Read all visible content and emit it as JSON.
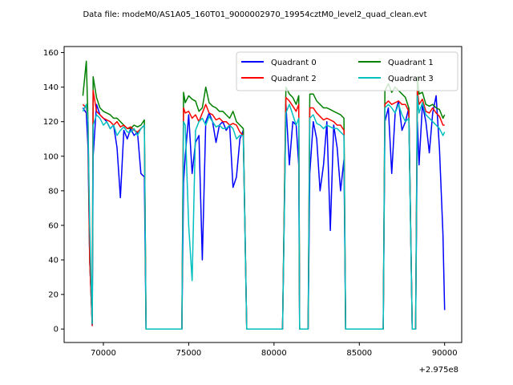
{
  "chart_data": {
    "type": "line",
    "title": "Data file: modeM0/AS1A05_160T01_9000002970_19954cztM0_level2_quad_clean.evt",
    "xlabel": "",
    "ylabel": "",
    "x_offset_label": "+2.975e8",
    "xlim": [
      67700,
      91000
    ],
    "ylim": [
      -7.8,
      163.5
    ],
    "x_ticks": [
      70000,
      75000,
      80000,
      85000,
      90000
    ],
    "y_ticks": [
      0,
      20,
      40,
      60,
      80,
      100,
      120,
      140,
      160
    ],
    "grid": false,
    "legend_position": "top-right",
    "legend_columns": 2,
    "series": [
      {
        "name": "Quadrant 0",
        "color": "#0000ff",
        "x": [
          68800,
          69000,
          69100,
          69200,
          69350,
          69400,
          69600,
          69800,
          70000,
          70200,
          70400,
          70600,
          70800,
          71000,
          71200,
          71400,
          71600,
          71800,
          72000,
          72200,
          72400,
          72500,
          74600,
          74700,
          74800,
          75000,
          75200,
          75400,
          75600,
          75800,
          76000,
          76200,
          76400,
          76600,
          76800,
          77000,
          77200,
          77400,
          77600,
          77800,
          78000,
          78200,
          78400,
          80500,
          80700,
          80900,
          81100,
          81300,
          81450,
          81500,
          82000,
          82100,
          82300,
          82500,
          82700,
          82900,
          83100,
          83300,
          83500,
          83700,
          83900,
          84100,
          84200,
          86400,
          86500,
          86700,
          86900,
          87100,
          87300,
          87500,
          87700,
          87900,
          88100,
          88300,
          88400,
          88500,
          88700,
          88900,
          89100,
          89300,
          89500,
          89700,
          89900,
          90000
        ],
        "y": [
          128,
          125,
          105,
          40,
          2,
          100,
          130,
          124,
          122,
          120,
          116,
          118,
          105,
          76,
          115,
          110,
          116,
          112,
          114,
          90,
          88,
          0,
          0,
          85,
          100,
          124,
          90,
          108,
          112,
          40,
          120,
          125,
          120,
          108,
          118,
          120,
          115,
          118,
          82,
          88,
          110,
          115,
          0,
          0,
          130,
          95,
          120,
          118,
          95,
          0,
          0,
          90,
          120,
          110,
          80,
          95,
          120,
          57,
          118,
          105,
          80,
          98,
          0,
          0,
          120,
          128,
          90,
          125,
          132,
          115,
          120,
          128,
          0,
          0,
          120,
          95,
          130,
          120,
          102,
          125,
          135,
          104,
          55,
          11
        ],
        "values": null
      },
      {
        "name": "Quadrant 1",
        "color": "#008000",
        "x": [
          68800,
          69000,
          69100,
          69200,
          69350,
          69400,
          69600,
          69800,
          70000,
          70200,
          70400,
          70600,
          70800,
          71000,
          71200,
          71400,
          71600,
          71800,
          72000,
          72200,
          72400,
          72500,
          74600,
          74700,
          74800,
          75000,
          75200,
          75400,
          75600,
          75800,
          76000,
          76200,
          76400,
          76600,
          76800,
          77000,
          77200,
          77400,
          77600,
          77800,
          78000,
          78200,
          78400,
          80500,
          80700,
          80900,
          81100,
          81300,
          81450,
          81500,
          82000,
          82100,
          82300,
          82500,
          82700,
          82900,
          83100,
          83300,
          83500,
          83700,
          83900,
          84100,
          84200,
          86400,
          86500,
          86700,
          86900,
          87100,
          87300,
          87500,
          87700,
          87900,
          88100,
          88300,
          88400,
          88500,
          88700,
          88900,
          89100,
          89300,
          89500,
          89700,
          89900,
          90000
        ],
        "y": [
          135,
          155,
          120,
          40,
          3,
          146,
          134,
          128,
          126,
          125,
          124,
          122,
          122,
          120,
          118,
          116,
          116,
          118,
          117,
          118,
          121,
          0,
          0,
          137,
          131,
          135,
          133,
          132,
          126,
          128,
          140,
          131,
          129,
          128,
          126,
          126,
          124,
          122,
          126,
          120,
          118,
          116,
          0,
          0,
          140,
          136,
          134,
          130,
          135,
          0,
          0,
          136,
          136,
          132,
          130,
          128,
          128,
          127,
          126,
          125,
          124,
          122,
          0,
          0,
          138,
          142,
          137,
          140,
          138,
          136,
          134,
          128,
          0,
          0,
          146,
          136,
          137,
          130,
          129,
          130,
          128,
          127,
          122,
          124
        ],
        "values": null
      },
      {
        "name": "Quadrant 2",
        "color": "#ff0000",
        "x": [
          68800,
          69000,
          69100,
          69200,
          69350,
          69400,
          69600,
          69800,
          70000,
          70200,
          70400,
          70600,
          70800,
          71000,
          71200,
          71400,
          71600,
          71800,
          72000,
          72200,
          72400,
          72500,
          74600,
          74700,
          74800,
          75000,
          75200,
          75400,
          75600,
          75800,
          76000,
          76200,
          76400,
          76600,
          76800,
          77000,
          77200,
          77400,
          77600,
          77800,
          78000,
          78200,
          78400,
          80500,
          80700,
          80900,
          81100,
          81300,
          81450,
          81500,
          82000,
          82100,
          82300,
          82500,
          82700,
          82900,
          83100,
          83300,
          83500,
          83700,
          83900,
          84100,
          84200,
          86400,
          86500,
          86700,
          86900,
          87100,
          87300,
          87500,
          87700,
          87900,
          88100,
          88300,
          88400,
          88500,
          88700,
          88900,
          89100,
          89300,
          89500,
          89700,
          89900,
          90000
        ],
        "y": [
          130,
          128,
          120,
          40,
          2,
          138,
          126,
          124,
          122,
          121,
          120,
          118,
          120,
          117,
          118,
          116,
          117,
          115,
          114,
          116,
          118,
          0,
          0,
          128,
          125,
          126,
          122,
          124,
          120,
          125,
          130,
          125,
          124,
          121,
          122,
          120,
          120,
          118,
          119,
          118,
          114,
          112,
          0,
          0,
          134,
          132,
          129,
          126,
          130,
          0,
          0,
          128,
          128,
          125,
          123,
          121,
          122,
          121,
          120,
          118,
          118,
          115,
          0,
          0,
          130,
          132,
          130,
          131,
          132,
          130,
          130,
          126,
          0,
          0,
          138,
          130,
          133,
          126,
          125,
          128,
          125,
          123,
          118,
          118
        ],
        "values": null
      },
      {
        "name": "Quadrant 3",
        "color": "#00bfbf",
        "x": [
          68800,
          69000,
          69100,
          69200,
          69350,
          69400,
          69600,
          69800,
          70000,
          70200,
          70400,
          70600,
          70800,
          71000,
          71200,
          71400,
          71600,
          71800,
          72000,
          72200,
          72400,
          72500,
          74600,
          74700,
          74800,
          75000,
          75200,
          75400,
          75600,
          75800,
          76000,
          76200,
          76400,
          76600,
          76800,
          77000,
          77200,
          77400,
          77600,
          77800,
          78000,
          78200,
          78400,
          80500,
          80700,
          80900,
          81100,
          81300,
          81450,
          81500,
          82000,
          82100,
          82300,
          82500,
          82700,
          82900,
          83100,
          83300,
          83500,
          83700,
          83900,
          84100,
          84200,
          86400,
          86500,
          86700,
          86900,
          87100,
          87300,
          87500,
          87700,
          87900,
          88100,
          88300,
          88400,
          88500,
          88700,
          88900,
          89100,
          89300,
          89500,
          89700,
          89900,
          90000
        ],
        "y": [
          126,
          130,
          120,
          60,
          3,
          118,
          124,
          122,
          118,
          120,
          116,
          118,
          112,
          115,
          117,
          114,
          114,
          116,
          112,
          116,
          118,
          0,
          0,
          120,
          118,
          60,
          28,
          115,
          120,
          122,
          118,
          123,
          120,
          117,
          118,
          116,
          116,
          118,
          116,
          110,
          112,
          112,
          0,
          0,
          125,
          130,
          124,
          118,
          122,
          0,
          0,
          122,
          124,
          119,
          118,
          116,
          118,
          117,
          116,
          116,
          114,
          112,
          0,
          0,
          128,
          130,
          128,
          125,
          130,
          124,
          120,
          122,
          0,
          0,
          135,
          125,
          131,
          124,
          122,
          120,
          118,
          116,
          112,
          114
        ],
        "values": null
      }
    ]
  },
  "colors": {
    "background": "#ffffff",
    "axes": "#000000"
  }
}
